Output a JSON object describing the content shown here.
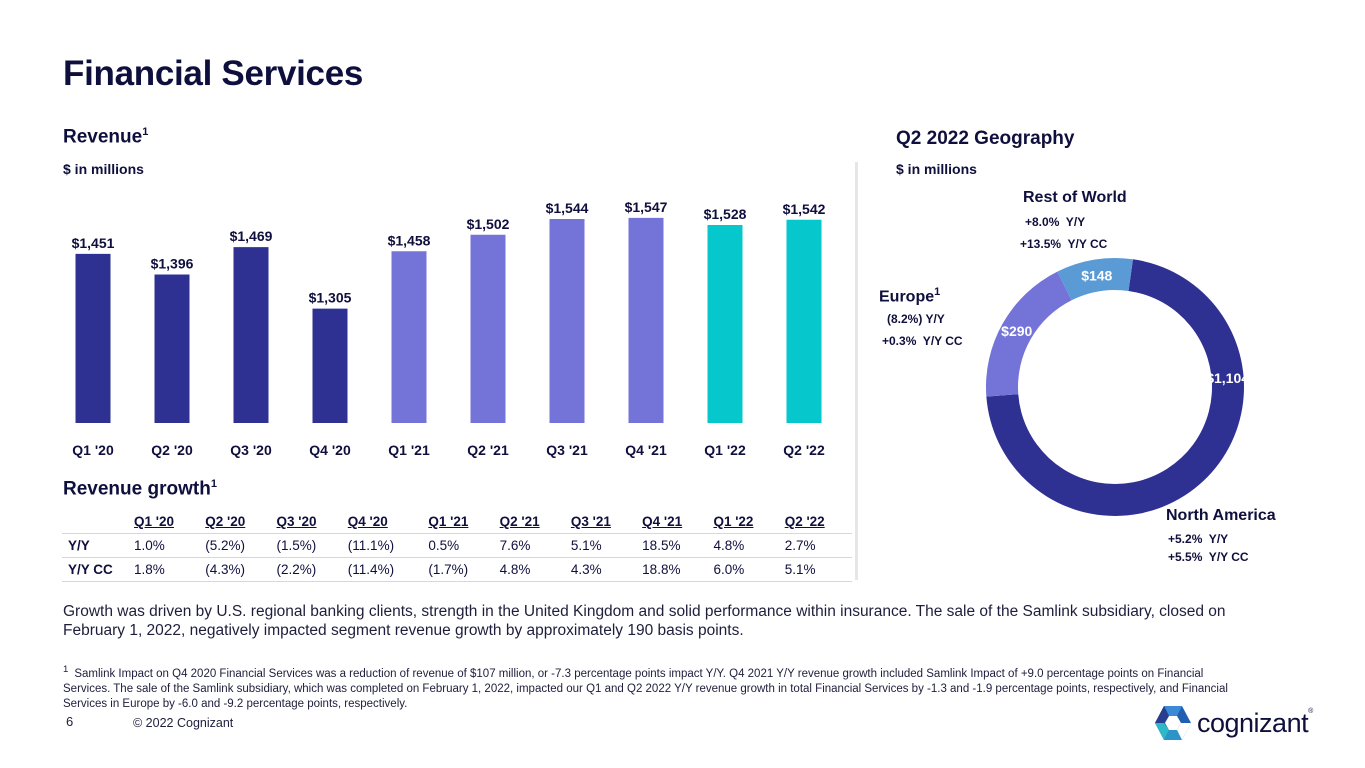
{
  "page": {
    "title": "Financial Services",
    "page_number": "6",
    "copyright": "© 2022 Cognizant",
    "logo_text": "cognizant",
    "logo_reg": "®"
  },
  "revenue": {
    "heading": "Revenue",
    "heading_sup": "1",
    "unit": "$ in millions"
  },
  "growth": {
    "heading": "Revenue growth",
    "heading_sup": "1",
    "columns": [
      "Q1 '20",
      "Q2 '20",
      "Q3 '20",
      "Q4 '20",
      "Q1 '21",
      "Q2 '21",
      "Q3 '21",
      "Q4 '21",
      "Q1 '22",
      "Q2 '22"
    ],
    "rows": [
      {
        "label": "Y/Y",
        "values": [
          "1.0%",
          "(5.2%)",
          "(1.5%)",
          "(11.1%)",
          "0.5%",
          "7.6%",
          "5.1%",
          "18.5%",
          "4.8%",
          "2.7%"
        ]
      },
      {
        "label": "Y/Y CC",
        "values": [
          "1.8%",
          "(4.3%)",
          "(2.2%)",
          "(11.4%)",
          "(1.7%)",
          "4.8%",
          "4.3%",
          "18.8%",
          "6.0%",
          "5.1%"
        ]
      }
    ]
  },
  "geography": {
    "heading": "Q2 2022 Geography",
    "unit": "$ in millions",
    "regions": {
      "rest_of_world": {
        "label": "Rest of World",
        "yy": "+8.0%  Y/Y",
        "yycc": "+13.5%  Y/Y CC"
      },
      "europe": {
        "label": "Europe",
        "sup": "1",
        "yy": "(8.2%) Y/Y",
        "yycc": "+0.3%  Y/Y CC"
      },
      "north_america": {
        "label": "North America",
        "yy": "+5.2%  Y/Y",
        "yycc": "+5.5%  Y/Y CC"
      }
    }
  },
  "narrative": "Growth was driven by U.S. regional banking clients, strength in the United Kingdom and solid performance within insurance. The sale of the Samlink subsidiary, closed on February 1, 2022, negatively impacted segment revenue growth by approximately 190 basis points.",
  "footnote": {
    "marker": "1",
    "text": "Samlink Impact on Q4 2020 Financial Services was a reduction of revenue of $107 million, or -7.3 percentage points impact Y/Y. Q4 2021 Y/Y revenue growth included Samlink Impact of +9.0 percentage points on Financial Services. The sale of the Samlink subsidiary, which was completed on February 1, 2022, impacted our Q1 and Q2 2022 Y/Y revenue growth in total Financial Services by -1.3 and -1.9 percentage points, respectively, and Financial Services in Europe by -6.0 and -9.2 percentage points, respectively."
  },
  "colors": {
    "dark_navy": "#2e3192",
    "periwinkle": "#7373d8",
    "teal": "#06c7cc",
    "light_blue": "#5b9bd5",
    "text": "#0f0f3d"
  },
  "chart_data": [
    {
      "type": "bar",
      "title": "Revenue",
      "ylabel": "$ in millions",
      "xlabel": "",
      "categories": [
        "Q1 '20",
        "Q2 '20",
        "Q3 '20",
        "Q4 '20",
        "Q1 '21",
        "Q2 '21",
        "Q3 '21",
        "Q4 '21",
        "Q1 '22",
        "Q2 '22"
      ],
      "values": [
        1451,
        1396,
        1469,
        1305,
        1458,
        1502,
        1544,
        1547,
        1528,
        1542
      ],
      "labels": [
        "$1,451",
        "$1,396",
        "$1,469",
        "$1,305",
        "$1,458",
        "$1,502",
        "$1,544",
        "$1,547",
        "$1,528",
        "$1,542"
      ],
      "color_groups": [
        "2020",
        "2020",
        "2020",
        "2020",
        "2021",
        "2021",
        "2021",
        "2021",
        "2022",
        "2022"
      ],
      "group_colors": {
        "2020": "#2e3192",
        "2021": "#7373d8",
        "2022": "#06c7cc"
      },
      "ylim": [
        1000,
        1560
      ],
      "grid": false,
      "legend": "none"
    },
    {
      "type": "pie",
      "title": "Q2 2022 Geography",
      "subtitle": "$ in millions",
      "donut": true,
      "slices": [
        {
          "name": "North America",
          "value": 1104,
          "label": "$1,104",
          "color": "#2e3192"
        },
        {
          "name": "Europe",
          "value": 290,
          "label": "$290",
          "color": "#7373d8"
        },
        {
          "name": "Rest of World",
          "value": 148,
          "label": "$148",
          "color": "#5b9bd5"
        }
      ]
    }
  ]
}
